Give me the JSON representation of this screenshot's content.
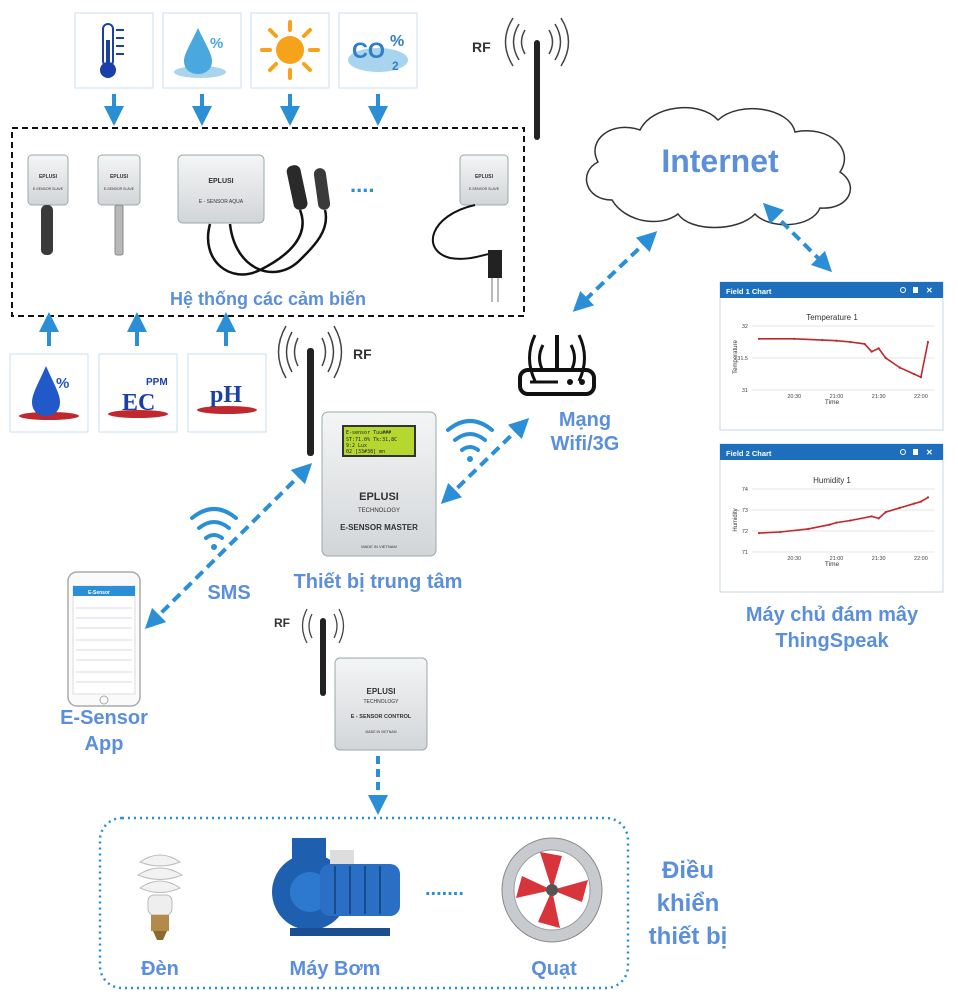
{
  "colors": {
    "label_blue": "#5b8fdc",
    "arrow_blue": "#2a8fd6",
    "chart_header": "#1d6fbd",
    "chart_line": "#c0282d",
    "lcd_green": "#b4d830"
  },
  "labels": {
    "sensor_system": "Hệ thống các cảm biến",
    "internet": "Internet",
    "wifi_network_line1": "Mạng",
    "wifi_network_line2": "Wifi/3G",
    "central_device": "Thiết bị trung tâm",
    "sms": "SMS",
    "app_line1": "E-Sensor",
    "app_line2": "App",
    "cloud_line1": "Máy chủ đám mây",
    "cloud_line2": "ThingSpeak",
    "control_line1": "Điều",
    "control_line2": "khiển",
    "control_line3": "thiết bị",
    "lamp": "Đèn",
    "pump": "Máy Bơm",
    "fan": "Quạt",
    "rf": "RF",
    "ellipsis_dots": "....",
    "ellipsis_row": "......."
  },
  "sensor_icons": {
    "co2_text": "CO",
    "co2_percent": "%",
    "co2_sub": "2",
    "humidity_percent": "%",
    "ec_text": "EC",
    "ec_unit": "PPM",
    "ph_text": "pH"
  },
  "devices": {
    "brand": "EPLUSI",
    "tech": "TECHNOLOGY",
    "made_in": "MADE IN VIETNAM",
    "slave_label": "E-SENSOR SLAVE",
    "aqua_label": "E - SENSOR AQUA",
    "master_label": "E-SENSOR MASTER",
    "control_label": "E - SENSOR CONTROL",
    "lcd_line1": "E-sensor  Tuu###",
    "lcd_line2": "ST:71.0%  Tk:31,8C",
    "lcd_line3": "              9:2 Lux",
    "lcd_line4": "02 [33#38] mn"
  },
  "app": {
    "title": "E-Sensor"
  },
  "charts": [
    {
      "header": "Field 1 Chart",
      "chart_data": {
        "type": "line",
        "title": "Temperature 1",
        "xlabel": "Time",
        "ylabel": "Temperature",
        "x_ticks": [
          "20:30",
          "21:00",
          "21:30",
          "22:00"
        ],
        "y_ticks": [
          "31",
          "31.5",
          "32"
        ],
        "ylim": [
          31,
          32
        ],
        "x": [
          "20:05",
          "20:30",
          "20:50",
          "21:00",
          "21:10",
          "21:20",
          "21:25",
          "21:30",
          "21:35",
          "21:45",
          "21:55",
          "22:00",
          "22:05"
        ],
        "values": [
          31.8,
          31.8,
          31.78,
          31.77,
          31.75,
          31.72,
          31.6,
          31.65,
          31.5,
          31.35,
          31.25,
          31.2,
          31.75
        ]
      }
    },
    {
      "header": "Field 2 Chart",
      "chart_data": {
        "type": "line",
        "title": "Humidity 1",
        "xlabel": "Time",
        "ylabel": "Humidity",
        "x_ticks": [
          "20:30",
          "21:00",
          "21:30",
          "22:00"
        ],
        "y_ticks": [
          "71",
          "72",
          "73",
          "74"
        ],
        "ylim": [
          71,
          74
        ],
        "x": [
          "20:05",
          "20:20",
          "20:40",
          "20:55",
          "21:00",
          "21:10",
          "21:25",
          "21:30",
          "21:35",
          "21:45",
          "21:55",
          "22:00",
          "22:05"
        ],
        "values": [
          71.9,
          71.95,
          72.1,
          72.3,
          72.4,
          72.5,
          72.7,
          72.6,
          72.9,
          73.1,
          73.3,
          73.4,
          73.6
        ]
      }
    }
  ]
}
